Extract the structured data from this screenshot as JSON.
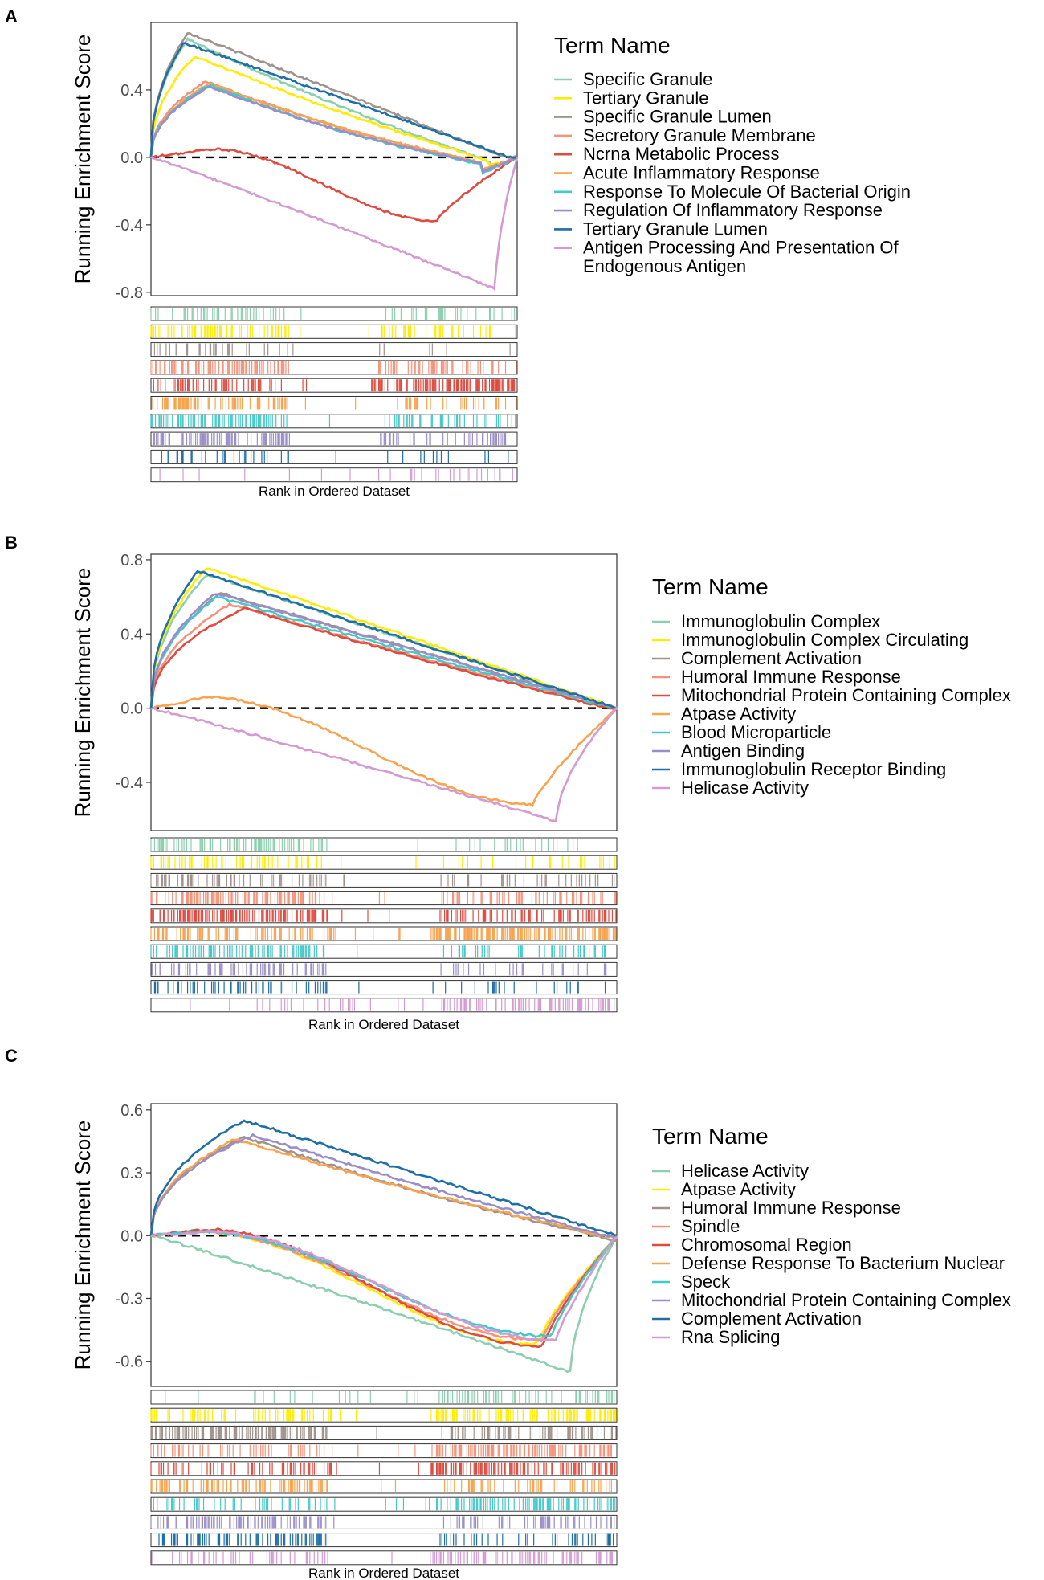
{
  "chart_data": [
    {
      "panel": "A",
      "type": "line",
      "ylabel": "Running Enrichment Score",
      "xlabel": "Rank in Ordered Dataset",
      "yticks": [
        "0.4",
        "0.0",
        "-0.4",
        "-0.8"
      ],
      "ytick_values": [
        0.4,
        0.0,
        -0.4,
        -0.8
      ],
      "ylim": [
        -0.82,
        0.8
      ],
      "zero_line": "dashed",
      "legend_title": "Term Name",
      "legend_placement": "right",
      "series": [
        {
          "name": "Specific Granule",
          "color": "#8ccfb0",
          "peak": 0.7,
          "peak_at": 0.1,
          "end_at": 0.93,
          "dip": -0.07,
          "sign": "pos",
          "density": 0.3
        },
        {
          "name": "Tertiary Granule",
          "color": "#ffec00",
          "peak": 0.6,
          "peak_at": 0.12,
          "end_at": 0.92,
          "dip": -0.05,
          "sign": "pos",
          "density": 0.45
        },
        {
          "name": "Specific Granule Lumen",
          "color": "#a0928c",
          "peak": 0.74,
          "peak_at": 0.1,
          "end_at": 0.97,
          "dip": 0.0,
          "sign": "pos",
          "density": 0.12
        },
        {
          "name": "Secretory Granule Membrane",
          "color": "#f4937a",
          "peak": 0.45,
          "peak_at": 0.15,
          "end_at": 0.9,
          "dip": -0.08,
          "sign": "pos",
          "density": 0.55
        },
        {
          "name": "Ncrna Metabolic Process",
          "color": "#e04b40",
          "peak": 0.05,
          "peak_at": 0.17,
          "end_at": 1.0,
          "dip": -0.38,
          "dip_at": 0.78,
          "sign": "ncrna",
          "density": 0.8
        },
        {
          "name": "Acute Inflammatory Response",
          "color": "#f7a34f",
          "peak": 0.44,
          "peak_at": 0.16,
          "end_at": 0.9,
          "dip": -0.08,
          "sign": "pos",
          "density": 0.4
        },
        {
          "name": "Response To Molecule Of Bacterial Origin",
          "color": "#44c9c9",
          "peak": 0.43,
          "peak_at": 0.16,
          "end_at": 0.9,
          "dip": -0.1,
          "sign": "pos",
          "density": 0.6
        },
        {
          "name": "Regulation Of Inflammatory Response",
          "color": "#9a8ec8",
          "peak": 0.42,
          "peak_at": 0.16,
          "end_at": 0.9,
          "dip": -0.09,
          "sign": "pos",
          "density": 0.5
        },
        {
          "name": "Tertiary Granule Lumen",
          "color": "#1f6ea6",
          "peak": 0.68,
          "peak_at": 0.09,
          "end_at": 0.98,
          "dip": 0.0,
          "sign": "pos",
          "density": 0.1
        },
        {
          "name": "Antigen Processing And Presentation Of Endogenous Antigen",
          "color": "#d49ad2",
          "peak": 0.0,
          "peak_at": 0.0,
          "end_at": 1.0,
          "dip": -0.78,
          "dip_at": 0.94,
          "sign": "neg",
          "density": 0.08
        }
      ]
    },
    {
      "panel": "B",
      "type": "line",
      "ylabel": "Running Enrichment Score",
      "xlabel": "Rank in Ordered Dataset",
      "yticks": [
        "0.8",
        "0.4",
        "0.0",
        "-0.4"
      ],
      "ytick_values": [
        0.8,
        0.4,
        0.0,
        -0.4
      ],
      "ylim": [
        -0.66,
        0.83
      ],
      "zero_line": "dashed",
      "legend_title": "Term Name",
      "legend_placement": "right",
      "series": [
        {
          "name": "Immunoglobulin Complex",
          "color": "#8ccfb0",
          "peak": 0.72,
          "peak_at": 0.12,
          "end_at": 1.0,
          "dip": 0.0,
          "sign": "pos",
          "density": 0.3
        },
        {
          "name": "Immunoglobulin Complex Circulating",
          "color": "#ffec00",
          "peak": 0.76,
          "peak_at": 0.12,
          "end_at": 1.0,
          "dip": 0.0,
          "sign": "pos",
          "density": 0.2
        },
        {
          "name": "Complement Activation",
          "color": "#a0928c",
          "peak": 0.62,
          "peak_at": 0.15,
          "end_at": 1.0,
          "dip": 0.0,
          "sign": "pos",
          "density": 0.4
        },
        {
          "name": "Humoral Immune Response",
          "color": "#f4937a",
          "peak": 0.56,
          "peak_at": 0.17,
          "end_at": 1.0,
          "dip": -0.02,
          "sign": "pos",
          "density": 0.6
        },
        {
          "name": "Mitochondrial Protein Containing Complex",
          "color": "#e04b40",
          "peak": 0.54,
          "peak_at": 0.2,
          "end_at": 1.0,
          "dip": -0.03,
          "sign": "pos",
          "density": 0.7
        },
        {
          "name": "Atpase Activity",
          "color": "#f7a34f",
          "peak": 0.06,
          "peak_at": 0.12,
          "end_at": 1.0,
          "dip": -0.52,
          "dip_at": 0.82,
          "sign": "ncrna",
          "density": 0.8
        },
        {
          "name": "Blood Microparticle",
          "color": "#44c9c9",
          "peak": 0.6,
          "peak_at": 0.14,
          "end_at": 1.0,
          "dip": -0.01,
          "sign": "pos",
          "density": 0.5
        },
        {
          "name": "Antigen Binding",
          "color": "#9a8ec8",
          "peak": 0.62,
          "peak_at": 0.14,
          "end_at": 1.0,
          "dip": 0.0,
          "sign": "pos",
          "density": 0.3
        },
        {
          "name": "Immunoglobulin Receptor Binding",
          "color": "#1f6ea6",
          "peak": 0.74,
          "peak_at": 0.1,
          "end_at": 1.0,
          "dip": 0.0,
          "sign": "pos",
          "density": 0.25
        },
        {
          "name": "Helicase Activity",
          "color": "#d49ad2",
          "peak": 0.0,
          "peak_at": 0.0,
          "end_at": 1.0,
          "dip": -0.61,
          "dip_at": 0.87,
          "sign": "neg",
          "density": 0.35
        }
      ]
    },
    {
      "panel": "C",
      "type": "line",
      "ylabel": "Running Enrichment Score",
      "xlabel": "Rank in Ordered Dataset",
      "yticks": [
        "0.6",
        "0.3",
        "0.0",
        "-0.3",
        "-0.6"
      ],
      "ytick_values": [
        0.6,
        0.3,
        0.0,
        -0.3,
        -0.6
      ],
      "ylim": [
        -0.72,
        0.63
      ],
      "zero_line": "dashed",
      "legend_title": "Term Name",
      "legend_placement": "right",
      "series": [
        {
          "name": "Helicase Activity",
          "color": "#8ccfb0",
          "peak": 0.0,
          "peak_at": 0.0,
          "end_at": 1.0,
          "dip": -0.65,
          "dip_at": 0.9,
          "sign": "neg",
          "density": 0.25
        },
        {
          "name": "Atpase Activity",
          "color": "#ffec00",
          "peak": 0.02,
          "peak_at": 0.1,
          "end_at": 1.0,
          "dip": -0.52,
          "dip_at": 0.83,
          "sign": "ncrna",
          "density": 0.6
        },
        {
          "name": "Humoral Immune Response",
          "color": "#a0928c",
          "peak": 0.47,
          "peak_at": 0.2,
          "end_at": 1.0,
          "dip": -0.06,
          "sign": "pos",
          "density": 0.55
        },
        {
          "name": "Spindle",
          "color": "#f4937a",
          "peak": 0.02,
          "peak_at": 0.1,
          "end_at": 1.0,
          "dip": -0.5,
          "dip_at": 0.84,
          "sign": "ncrna",
          "density": 0.6
        },
        {
          "name": "Chromosomal Region",
          "color": "#e04b40",
          "peak": 0.03,
          "peak_at": 0.12,
          "end_at": 1.0,
          "dip": -0.53,
          "dip_at": 0.84,
          "sign": "ncrna",
          "density": 0.7
        },
        {
          "name": "Defense Response To Bacterium Nuclear",
          "color": "#f7a34f",
          "peak": 0.46,
          "peak_at": 0.18,
          "end_at": 1.0,
          "dip": -0.04,
          "sign": "pos",
          "density": 0.5
        },
        {
          "name": "Speck",
          "color": "#44c9c9",
          "peak": 0.02,
          "peak_at": 0.1,
          "end_at": 1.0,
          "dip": -0.48,
          "dip_at": 0.86,
          "sign": "ncrna",
          "density": 0.55
        },
        {
          "name": "Mitochondrial Protein Containing Complex",
          "color": "#9a8ec8",
          "peak": 0.48,
          "peak_at": 0.22,
          "end_at": 1.0,
          "dip": -0.03,
          "sign": "pos",
          "density": 0.45
        },
        {
          "name": "Complement Activation",
          "color": "#1f6ea6",
          "peak": 0.55,
          "peak_at": 0.2,
          "end_at": 1.0,
          "dip": 0.0,
          "sign": "pos",
          "density": 0.4
        },
        {
          "name": "Rna Splicing",
          "color": "#d49ad2",
          "peak": 0.02,
          "peak_at": 0.12,
          "end_at": 1.0,
          "dip": -0.5,
          "dip_at": 0.87,
          "sign": "ncrna",
          "density": 0.45
        }
      ]
    }
  ]
}
